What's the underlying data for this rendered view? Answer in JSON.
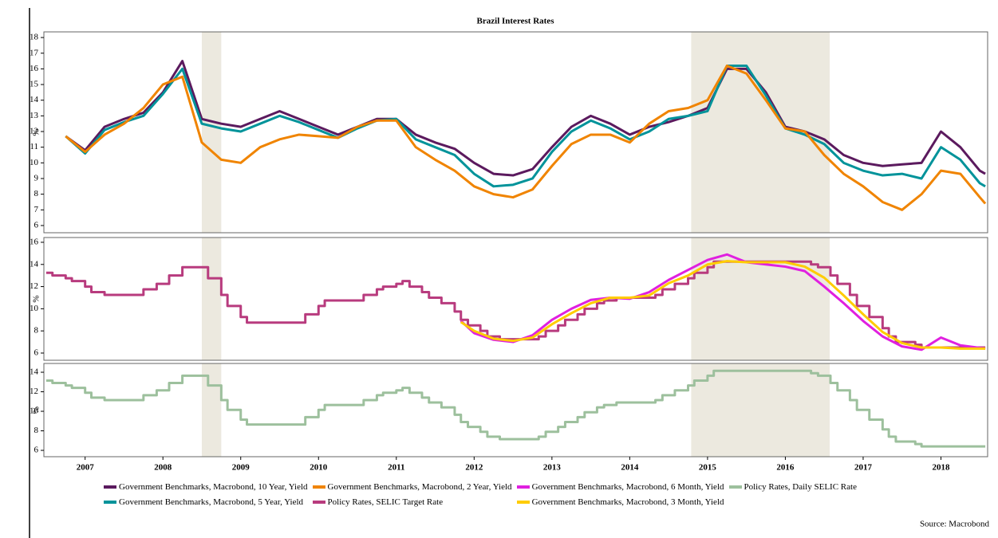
{
  "chart_data": {
    "type": "line",
    "title": "Brazil Interest Rates",
    "source": "Source: Macrobond",
    "xlim": [
      2006.97,
      2019.1
    ],
    "xticks": [
      {
        "value": 2007.5,
        "label": "2007"
      },
      {
        "value": 2008.5,
        "label": "2008"
      },
      {
        "value": 2009.5,
        "label": "2009"
      },
      {
        "value": 2010.5,
        "label": "2010"
      },
      {
        "value": 2011.5,
        "label": "2011"
      },
      {
        "value": 2012.5,
        "label": "2012"
      },
      {
        "value": 2013.5,
        "label": "2013"
      },
      {
        "value": 2014.5,
        "label": "2014"
      },
      {
        "value": 2015.5,
        "label": "2015"
      },
      {
        "value": 2016.5,
        "label": "2016"
      },
      {
        "value": 2017.5,
        "label": "2017"
      },
      {
        "value": 2018.5,
        "label": "2018"
      }
    ],
    "shaded_periods": [
      [
        2009.0,
        2009.25
      ],
      [
        2015.29,
        2017.07
      ]
    ],
    "shade_color": "#ece9df",
    "panels": [
      {
        "ylabel": "%",
        "ylim": [
          5.54,
          18.36
        ],
        "yticks": [
          6,
          7,
          8,
          9,
          10,
          11,
          12,
          13,
          14,
          15,
          16,
          17,
          18
        ],
        "series": [
          {
            "name": "Government Benchmarks, Macrobond, 10 Year, Yield",
            "color": "#5b1a5e",
            "step": false,
            "x": [
              2007.25,
              2007.5,
              2007.75,
              2008.0,
              2008.25,
              2008.5,
              2008.75,
              2009.0,
              2009.25,
              2009.5,
              2009.75,
              2010.0,
              2010.25,
              2010.5,
              2010.75,
              2011.0,
              2011.25,
              2011.5,
              2011.75,
              2012.0,
              2012.25,
              2012.5,
              2012.75,
              2013.0,
              2013.25,
              2013.5,
              2013.75,
              2014.0,
              2014.25,
              2014.5,
              2014.75,
              2015.0,
              2015.25,
              2015.5,
              2015.75,
              2016.0,
              2016.25,
              2016.5,
              2016.75,
              2017.0,
              2017.25,
              2017.5,
              2017.75,
              2018.0,
              2018.25,
              2018.5,
              2018.75,
              2019.0,
              2019.07
            ],
            "values": [
              11.7,
              10.8,
              12.3,
              12.8,
              13.2,
              14.5,
              16.5,
              12.8,
              12.5,
              12.3,
              12.8,
              13.3,
              12.8,
              12.3,
              11.8,
              12.3,
              12.8,
              12.8,
              11.8,
              11.3,
              10.9,
              10.0,
              9.3,
              9.2,
              9.6,
              11.0,
              12.3,
              13.0,
              12.5,
              11.8,
              12.3,
              12.6,
              13.0,
              13.5,
              16.0,
              16.0,
              14.5,
              12.3,
              12.0,
              11.5,
              10.5,
              10.0,
              9.8,
              9.9,
              10.0,
              12.0,
              11.0,
              9.5,
              9.3
            ]
          },
          {
            "name": "Government Benchmarks, Macrobond, 5 Year, Yield",
            "color": "#00939a",
            "step": false,
            "x": [
              2007.25,
              2007.5,
              2007.75,
              2008.0,
              2008.25,
              2008.5,
              2008.75,
              2009.0,
              2009.25,
              2009.5,
              2009.75,
              2010.0,
              2010.25,
              2010.5,
              2010.75,
              2011.0,
              2011.25,
              2011.5,
              2011.75,
              2012.0,
              2012.25,
              2012.5,
              2012.75,
              2013.0,
              2013.25,
              2013.5,
              2013.75,
              2014.0,
              2014.25,
              2014.5,
              2014.75,
              2015.0,
              2015.25,
              2015.5,
              2015.75,
              2016.0,
              2016.25,
              2016.5,
              2016.75,
              2017.0,
              2017.25,
              2017.5,
              2017.75,
              2018.0,
              2018.25,
              2018.5,
              2018.75,
              2019.0,
              2019.07
            ],
            "values": [
              11.7,
              10.6,
              12.1,
              12.6,
              13.0,
              14.4,
              16.0,
              12.5,
              12.2,
              12.0,
              12.5,
              13.0,
              12.6,
              12.1,
              11.6,
              12.2,
              12.7,
              12.8,
              11.5,
              11.0,
              10.5,
              9.3,
              8.5,
              8.6,
              9.0,
              10.7,
              12.0,
              12.7,
              12.2,
              11.5,
              12.0,
              12.8,
              13.0,
              13.3,
              16.2,
              16.2,
              14.3,
              12.2,
              11.8,
              11.2,
              10.0,
              9.5,
              9.2,
              9.3,
              9.0,
              11.0,
              10.2,
              8.7,
              8.5
            ]
          },
          {
            "name": "Government Benchmarks, Macrobond, 2 Year, Yield",
            "color": "#f08400",
            "step": false,
            "x": [
              2007.25,
              2007.5,
              2007.75,
              2008.0,
              2008.25,
              2008.5,
              2008.75,
              2009.0,
              2009.25,
              2009.5,
              2009.75,
              2010.0,
              2010.25,
              2010.5,
              2010.75,
              2011.0,
              2011.25,
              2011.5,
              2011.75,
              2012.0,
              2012.25,
              2012.5,
              2012.75,
              2013.0,
              2013.25,
              2013.5,
              2013.75,
              2014.0,
              2014.25,
              2014.5,
              2014.75,
              2015.0,
              2015.25,
              2015.5,
              2015.75,
              2016.0,
              2016.25,
              2016.5,
              2016.75,
              2017.0,
              2017.25,
              2017.5,
              2017.75,
              2018.0,
              2018.25,
              2018.5,
              2018.75,
              2019.0,
              2019.07
            ],
            "values": [
              11.7,
              10.7,
              11.8,
              12.5,
              13.5,
              15.0,
              15.5,
              11.3,
              10.2,
              10.0,
              11.0,
              11.5,
              11.8,
              11.7,
              11.6,
              12.3,
              12.7,
              12.7,
              11.0,
              10.2,
              9.5,
              8.5,
              8.0,
              7.8,
              8.3,
              9.8,
              11.2,
              11.8,
              11.8,
              11.3,
              12.5,
              13.3,
              13.5,
              14.0,
              16.2,
              15.7,
              14.0,
              12.2,
              12.0,
              10.5,
              9.3,
              8.5,
              7.5,
              7.0,
              8.0,
              9.5,
              9.3,
              7.8,
              7.4
            ]
          }
        ]
      },
      {
        "ylabel": "%",
        "ylim": [
          5.35,
          16.43
        ],
        "yticks": [
          6,
          8,
          10,
          12,
          14,
          16
        ],
        "series": [
          {
            "name": "Policy Rates, SELIC Target Rate",
            "color": "#b83b7e",
            "step": true,
            "x": [
              2007.0,
              2007.08,
              2007.25,
              2007.33,
              2007.5,
              2007.58,
              2007.75,
              2008.25,
              2008.42,
              2008.58,
              2008.75,
              2009.08,
              2009.25,
              2009.33,
              2009.5,
              2009.58,
              2010.33,
              2010.5,
              2010.58,
              2011.08,
              2011.25,
              2011.33,
              2011.5,
              2011.58,
              2011.67,
              2011.83,
              2011.92,
              2012.08,
              2012.25,
              2012.33,
              2012.42,
              2012.58,
              2012.67,
              2012.83,
              2013.33,
              2013.42,
              2013.58,
              2013.67,
              2013.83,
              2013.92,
              2014.08,
              2014.17,
              2014.33,
              2014.83,
              2014.92,
              2015.08,
              2015.25,
              2015.33,
              2015.5,
              2015.58,
              2016.83,
              2016.92,
              2017.08,
              2017.17,
              2017.33,
              2017.42,
              2017.58,
              2017.75,
              2017.83,
              2017.92,
              2018.17,
              2018.25,
              2019.07
            ],
            "values": [
              13.25,
              13.0,
              12.75,
              12.5,
              12.0,
              11.5,
              11.25,
              11.75,
              12.25,
              13.0,
              13.75,
              12.75,
              11.25,
              10.25,
              9.25,
              8.75,
              9.5,
              10.25,
              10.75,
              11.25,
              11.75,
              12.0,
              12.25,
              12.5,
              12.0,
              11.5,
              11.0,
              10.5,
              9.75,
              9.0,
              8.5,
              8.0,
              7.5,
              7.25,
              7.5,
              8.0,
              8.5,
              9.0,
              9.5,
              10.0,
              10.5,
              10.75,
              11.0,
              11.25,
              11.75,
              12.25,
              12.75,
              13.25,
              13.75,
              14.25,
              14.0,
              13.75,
              13.0,
              12.25,
              11.25,
              10.25,
              9.25,
              8.25,
              7.5,
              7.0,
              6.75,
              6.5,
              6.5
            ]
          },
          {
            "name": "Government Benchmarks, Macrobond, 6 Month, Yield",
            "color": "#e020e0",
            "step": false,
            "x": [
              2012.33,
              2012.5,
              2012.75,
              2013.0,
              2013.25,
              2013.5,
              2013.75,
              2014.0,
              2014.25,
              2014.5,
              2014.75,
              2015.0,
              2015.25,
              2015.5,
              2015.75,
              2016.0,
              2016.25,
              2016.5,
              2016.75,
              2017.0,
              2017.25,
              2017.5,
              2017.75,
              2018.0,
              2018.25,
              2018.5,
              2018.75,
              2019.07
            ],
            "values": [
              8.9,
              7.8,
              7.2,
              7.0,
              7.6,
              9.0,
              10.0,
              10.8,
              11.0,
              10.9,
              11.5,
              12.6,
              13.5,
              14.4,
              14.9,
              14.2,
              14.0,
              13.8,
              13.4,
              12.0,
              10.5,
              8.9,
              7.5,
              6.6,
              6.3,
              7.4,
              6.7,
              6.4
            ]
          },
          {
            "name": "Government Benchmarks, Macrobond, 3 Month, Yield",
            "color": "#ffcc00",
            "step": false,
            "x": [
              2012.33,
              2012.5,
              2012.75,
              2013.0,
              2013.25,
              2013.5,
              2013.75,
              2014.0,
              2014.25,
              2014.5,
              2014.75,
              2015.0,
              2015.25,
              2015.5,
              2015.75,
              2016.0,
              2016.25,
              2016.5,
              2016.75,
              2017.0,
              2017.25,
              2017.5,
              2017.75,
              2018.0,
              2018.25,
              2018.5,
              2018.75,
              2019.07
            ],
            "values": [
              8.8,
              8.0,
              7.3,
              7.1,
              7.4,
              8.6,
              9.6,
              10.5,
              11.0,
              11.0,
              11.2,
              12.3,
              13.0,
              14.0,
              14.3,
              14.2,
              14.2,
              14.2,
              13.8,
              12.8,
              11.2,
              9.5,
              7.9,
              6.9,
              6.5,
              6.5,
              6.4,
              6.4
            ]
          }
        ]
      },
      {
        "ylabel": "%",
        "ylim": [
          5.35,
          14.9
        ],
        "yticks": [
          6,
          8,
          10,
          12,
          14
        ],
        "series": [
          {
            "name": "Policy Rates, Daily SELIC Rate",
            "color": "#9dc09d",
            "step": true,
            "x": [
              2007.0,
              2007.08,
              2007.25,
              2007.33,
              2007.5,
              2007.58,
              2007.75,
              2008.25,
              2008.42,
              2008.58,
              2008.75,
              2009.08,
              2009.25,
              2009.33,
              2009.5,
              2009.58,
              2010.33,
              2010.5,
              2010.58,
              2011.08,
              2011.25,
              2011.33,
              2011.5,
              2011.58,
              2011.67,
              2011.83,
              2011.92,
              2012.08,
              2012.25,
              2012.33,
              2012.42,
              2012.58,
              2012.67,
              2012.83,
              2013.33,
              2013.42,
              2013.58,
              2013.67,
              2013.83,
              2013.92,
              2014.08,
              2014.17,
              2014.33,
              2014.83,
              2014.92,
              2015.08,
              2015.25,
              2015.33,
              2015.5,
              2015.58,
              2016.83,
              2016.92,
              2017.08,
              2017.17,
              2017.33,
              2017.42,
              2017.58,
              2017.75,
              2017.83,
              2017.92,
              2018.17,
              2018.25,
              2019.07
            ],
            "values": [
              13.15,
              12.9,
              12.65,
              12.4,
              11.9,
              11.4,
              11.15,
              11.65,
              12.15,
              12.9,
              13.65,
              12.65,
              11.15,
              10.15,
              9.15,
              8.65,
              9.4,
              10.15,
              10.65,
              11.15,
              11.65,
              11.9,
              12.15,
              12.4,
              11.9,
              11.4,
              10.9,
              10.4,
              9.65,
              8.9,
              8.4,
              7.9,
              7.4,
              7.15,
              7.4,
              7.9,
              8.4,
              8.9,
              9.4,
              9.9,
              10.4,
              10.65,
              10.9,
              11.15,
              11.65,
              12.15,
              12.65,
              13.15,
              13.65,
              14.15,
              13.9,
              13.65,
              12.9,
              12.15,
              11.15,
              10.15,
              9.15,
              8.15,
              7.4,
              6.9,
              6.65,
              6.4,
              6.4
            ]
          }
        ]
      }
    ]
  }
}
